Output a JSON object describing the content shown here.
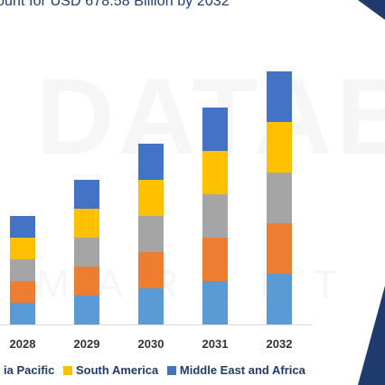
{
  "title": "ount for USD 678.58 Billion by 2032",
  "watermark": "DATABRI",
  "watermark_sub": "MARKET RE",
  "chart_data": {
    "type": "bar",
    "stacked": true,
    "title": "ount for USD 678.58 Billion by 2032",
    "categories": [
      "2028",
      "2029",
      "2030",
      "2031",
      "2032"
    ],
    "series": [
      {
        "name": "",
        "color": "#5b9bd5",
        "values": [
          24,
          32,
          40,
          48,
          56
        ]
      },
      {
        "name": "",
        "color": "#ed7d31",
        "values": [
          24,
          32,
          40,
          48,
          56
        ]
      },
      {
        "name": "",
        "color": "#a5a5a5",
        "values": [
          24,
          32,
          40,
          48,
          56
        ]
      },
      {
        "name": "South America",
        "color": "#ffc000",
        "values": [
          24,
          32,
          40,
          48,
          56
        ]
      },
      {
        "name": "Middle East and Africa",
        "color": "#4472c4",
        "values": [
          24,
          32,
          40,
          48,
          56
        ]
      }
    ],
    "legend_placement": "bottom",
    "grid": false
  },
  "legend": [
    {
      "label": "ia Pacific",
      "color": "#a5a5a5"
    },
    {
      "label": "South America",
      "color": "#ffc000"
    },
    {
      "label": "Middle East and Africa",
      "color": "#4472c4"
    }
  ]
}
